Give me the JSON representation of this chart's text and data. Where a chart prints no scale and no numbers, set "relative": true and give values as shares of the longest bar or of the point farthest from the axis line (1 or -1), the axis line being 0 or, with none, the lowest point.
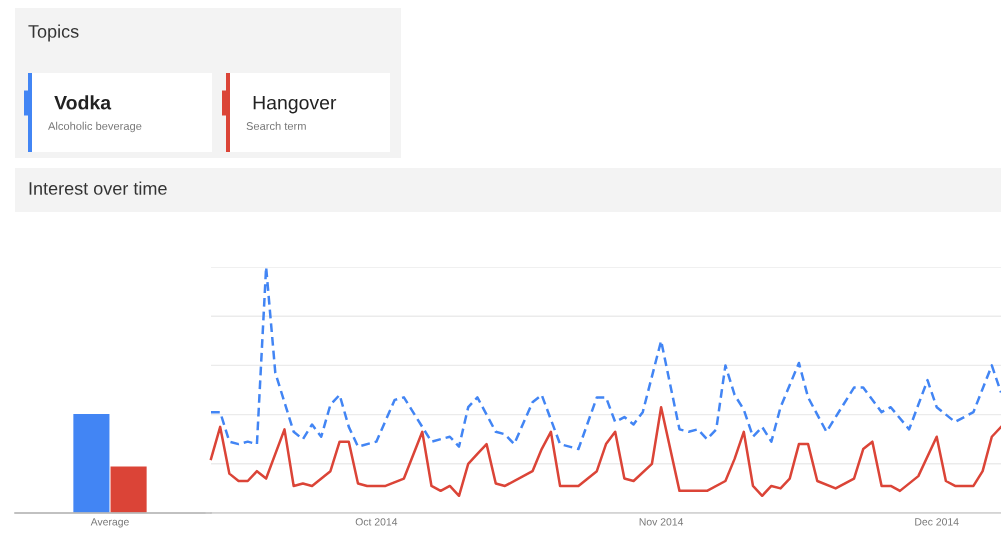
{
  "chart_data": [
    {
      "type": "bar",
      "categories": [
        "Average"
      ],
      "relative": true,
      "tick_labels": "x",
      "grid": false,
      "series": [
        {
          "color": "#4285f4",
          "values": [
            1
          ]
        },
        {
          "color": "#db4437",
          "values": [
            0.47
          ]
        }
      ]
    },
    {
      "type": "line",
      "title": "Interest over time",
      "legend_title": "Topics",
      "legend": "top left",
      "relative": true,
      "tick_labels": "x",
      "grid": "y",
      "marker": "none",
      "annotations": [
        "Alcoholic beverage",
        "Search term"
      ],
      "xlim": [
        "2014-09-13",
        "2014-12-08"
      ],
      "xticks": [
        {
          "value": "2014-10-01",
          "label": "Oct 2014"
        },
        {
          "value": "2014-11-01",
          "label": "Nov 2014"
        },
        {
          "value": "2014-12-01",
          "label": "Dec 2014"
        }
      ],
      "series": [
        {
          "name": "Vodka",
          "color": "#4285f4",
          "line_style": "dashed",
          "x": [
            "2014-09-13",
            "2014-09-14",
            "2014-09-15",
            "2014-09-16",
            "2014-09-17",
            "2014-09-18",
            "2014-09-19",
            "2014-09-20",
            "2014-09-22",
            "2014-09-23",
            "2014-09-24",
            "2014-09-25",
            "2014-09-26",
            "2014-09-27",
            "2014-09-28",
            "2014-09-29",
            "2014-10-01",
            "2014-10-03",
            "2014-10-04",
            "2014-10-06",
            "2014-10-07",
            "2014-10-09",
            "2014-10-10",
            "2014-10-11",
            "2014-10-12",
            "2014-10-14",
            "2014-10-15",
            "2014-10-16",
            "2014-10-18",
            "2014-10-19",
            "2014-10-21",
            "2014-10-23",
            "2014-10-25",
            "2014-10-26",
            "2014-10-27",
            "2014-10-28",
            "2014-10-29",
            "2014-10-30",
            "2014-11-01",
            "2014-11-03",
            "2014-11-04",
            "2014-11-05",
            "2014-11-06",
            "2014-11-07",
            "2014-11-08",
            "2014-11-09",
            "2014-11-10",
            "2014-11-11",
            "2014-11-12",
            "2014-11-13",
            "2014-11-14",
            "2014-11-16",
            "2014-11-17",
            "2014-11-19",
            "2014-11-20",
            "2014-11-22",
            "2014-11-23",
            "2014-11-25",
            "2014-11-26",
            "2014-11-28",
            "2014-11-30",
            "2014-12-01",
            "2014-12-03",
            "2014-12-05",
            "2014-12-07",
            "2014-12-08"
          ],
          "values": [
            0.41,
            0.41,
            0.29,
            0.28,
            0.29,
            0.28,
            1.0,
            0.57,
            0.33,
            0.3,
            0.36,
            0.31,
            0.44,
            0.48,
            0.35,
            0.27,
            0.29,
            0.46,
            0.47,
            0.35,
            0.29,
            0.31,
            0.27,
            0.43,
            0.47,
            0.33,
            0.32,
            0.28,
            0.45,
            0.48,
            0.28,
            0.26,
            0.47,
            0.47,
            0.37,
            0.39,
            0.36,
            0.41,
            0.7,
            0.34,
            0.33,
            0.34,
            0.3,
            0.34,
            0.6,
            0.48,
            0.42,
            0.31,
            0.35,
            0.29,
            0.43,
            0.61,
            0.47,
            0.33,
            0.39,
            0.51,
            0.51,
            0.41,
            0.43,
            0.34,
            0.54,
            0.43,
            0.37,
            0.41,
            0.6,
            0.49
          ]
        },
        {
          "name": "Hangover",
          "color": "#db4437",
          "line_style": "solid",
          "x": [
            "2014-09-13",
            "2014-09-14",
            "2014-09-15",
            "2014-09-16",
            "2014-09-17",
            "2014-09-18",
            "2014-09-19",
            "2014-09-21",
            "2014-09-22",
            "2014-09-23",
            "2014-09-24",
            "2014-09-26",
            "2014-09-27",
            "2014-09-28",
            "2014-09-29",
            "2014-09-30",
            "2014-10-02",
            "2014-10-04",
            "2014-10-06",
            "2014-10-07",
            "2014-10-08",
            "2014-10-09",
            "2014-10-10",
            "2014-10-11",
            "2014-10-12",
            "2014-10-13",
            "2014-10-14",
            "2014-10-15",
            "2014-10-18",
            "2014-10-19",
            "2014-10-20",
            "2014-10-21",
            "2014-10-23",
            "2014-10-25",
            "2014-10-26",
            "2014-10-27",
            "2014-10-28",
            "2014-10-29",
            "2014-10-31",
            "2014-11-01",
            "2014-11-03",
            "2014-11-06",
            "2014-11-08",
            "2014-11-09",
            "2014-11-10",
            "2014-11-11",
            "2014-11-12",
            "2014-11-13",
            "2014-11-14",
            "2014-11-15",
            "2014-11-16",
            "2014-11-17",
            "2014-11-18",
            "2014-11-20",
            "2014-11-22",
            "2014-11-23",
            "2014-11-24",
            "2014-11-25",
            "2014-11-26",
            "2014-11-27",
            "2014-11-29",
            "2014-12-01",
            "2014-12-02",
            "2014-12-03",
            "2014-12-05",
            "2014-12-06",
            "2014-12-07",
            "2014-12-08"
          ],
          "values": [
            0.22,
            0.35,
            0.16,
            0.13,
            0.13,
            0.17,
            0.14,
            0.34,
            0.11,
            0.12,
            0.11,
            0.17,
            0.29,
            0.29,
            0.12,
            0.11,
            0.11,
            0.14,
            0.33,
            0.11,
            0.09,
            0.11,
            0.07,
            0.2,
            0.24,
            0.28,
            0.12,
            0.11,
            0.17,
            0.26,
            0.33,
            0.11,
            0.11,
            0.17,
            0.28,
            0.33,
            0.14,
            0.13,
            0.2,
            0.43,
            0.09,
            0.09,
            0.13,
            0.22,
            0.33,
            0.11,
            0.07,
            0.11,
            0.1,
            0.14,
            0.28,
            0.28,
            0.13,
            0.1,
            0.14,
            0.26,
            0.29,
            0.11,
            0.11,
            0.09,
            0.15,
            0.31,
            0.13,
            0.11,
            0.11,
            0.17,
            0.31,
            0.35
          ]
        }
      ]
    }
  ]
}
